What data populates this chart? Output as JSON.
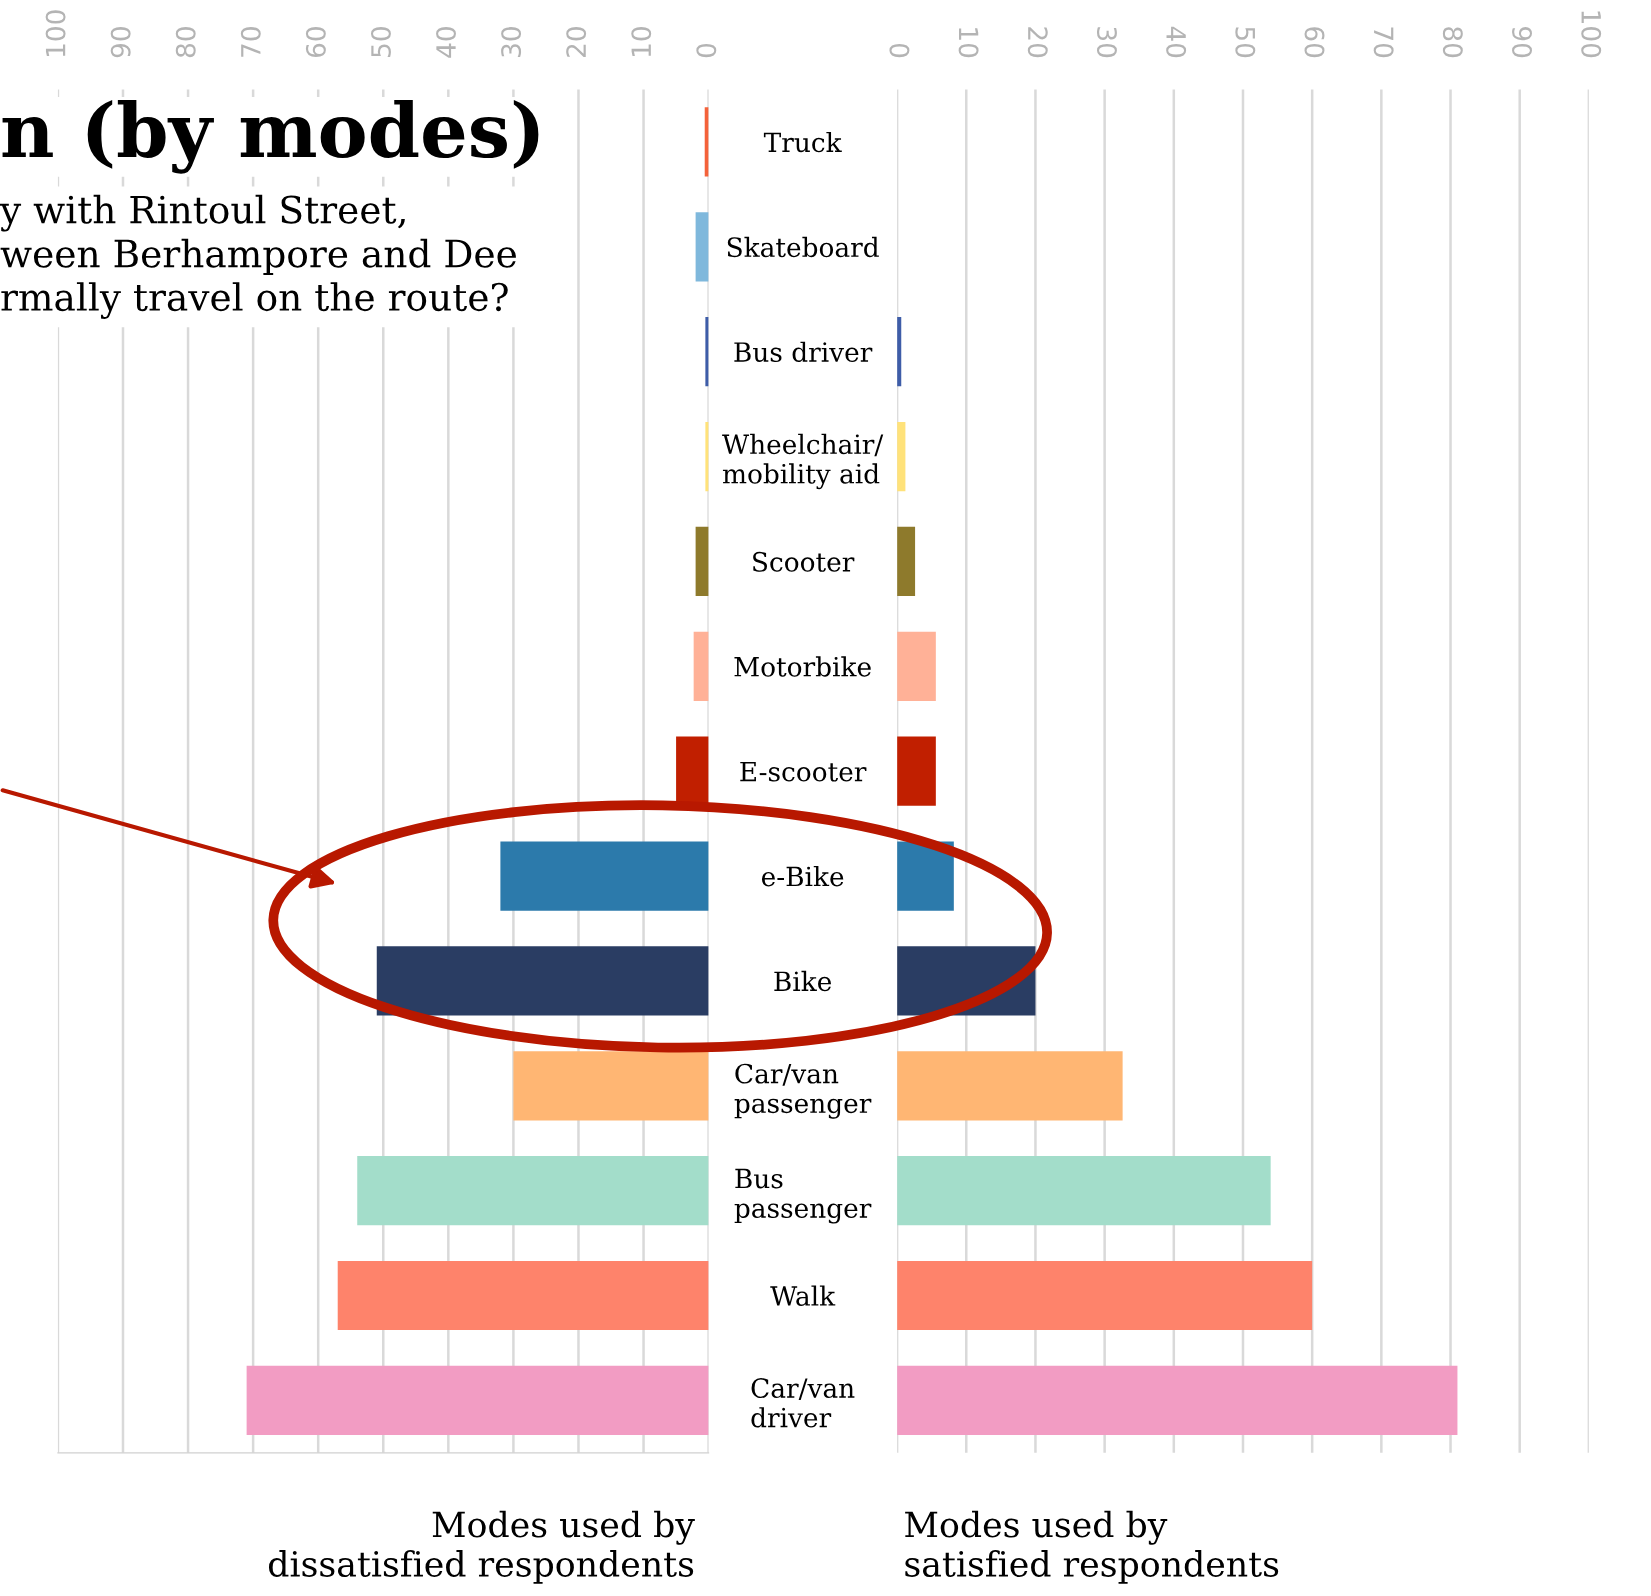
{
  "chart_data": [
    {
      "type": "bar",
      "orientation": "horizontal",
      "title": "n (by modes)",
      "subtitle": "y with Rintoul Street,\nween Berhampore and Dee\nrmally travel on the route?",
      "categories": [
        "Truck",
        "Skateboard",
        "Bus driver",
        "Wheelchair/\nmobility aid",
        "Scooter",
        "Motorbike",
        "E-scooter",
        "e-Bike",
        "Bike",
        "Car/van\npassenger",
        "Bus\npassenger",
        "Walk",
        "Car/van\ndriver"
      ],
      "values": [
        0.6,
        2,
        0.5,
        0.5,
        2,
        2.3,
        5,
        32,
        51,
        30,
        54,
        57,
        71
      ],
      "colors": [
        "#f4623a",
        "#7fb8dc",
        "#3e5da8",
        "#ffe27a",
        "#8e7a2c",
        "#ffb197",
        "#c11f00",
        "#2c7aab",
        "#2a3d63",
        "#ffb673",
        "#a3ddca",
        "#fe836b",
        "#f29cc3"
      ],
      "xlim": [
        100,
        0
      ],
      "xticks": [
        100,
        90,
        80,
        70,
        60,
        50,
        40,
        30,
        20,
        10,
        0
      ],
      "grid": "x",
      "annotations": [
        "Modes used by\ndissatisfied respondents"
      ]
    },
    {
      "type": "bar",
      "orientation": "horizontal",
      "values": [
        0,
        0,
        0.6,
        1.2,
        2.6,
        5.6,
        5.6,
        8.2,
        20,
        32.6,
        54,
        60,
        81
      ],
      "colors": [
        "#f4623a",
        "#7fb8dc",
        "#3e5da8",
        "#ffe27a",
        "#8e7a2c",
        "#ffb197",
        "#c11f00",
        "#2c7aab",
        "#2a3d63",
        "#ffb673",
        "#a3ddca",
        "#fe836b",
        "#f29cc3"
      ],
      "xlim": [
        0,
        100
      ],
      "xticks": [
        0,
        10,
        20,
        30,
        40,
        50,
        60,
        70,
        80,
        90,
        100
      ],
      "grid": "x",
      "tick_labels": "x",
      "annotations": [
        "Modes used by\nsatisfied respondents"
      ]
    }
  ]
}
